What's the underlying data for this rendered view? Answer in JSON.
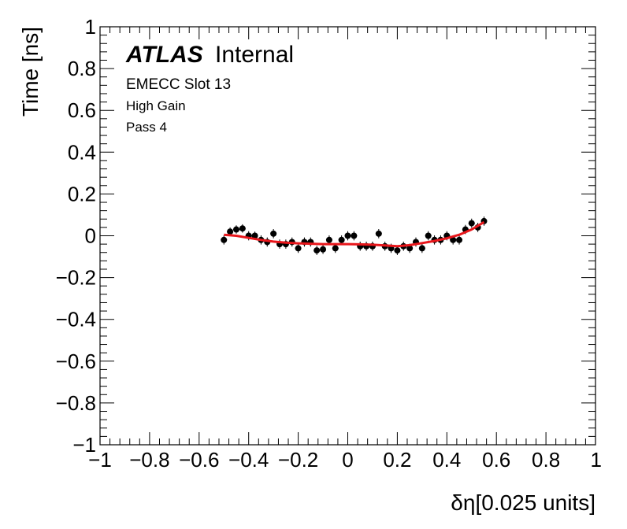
{
  "chart_data": {
    "type": "scatter",
    "xlabel": "δη[0.025 units]",
    "ylabel": "Time [ns]",
    "xlim": [
      -1,
      1
    ],
    "ylim": [
      -1,
      1
    ],
    "x_ticks": [
      -1,
      -0.8,
      -0.6,
      -0.4,
      -0.2,
      0,
      0.2,
      0.4,
      0.6,
      0.8,
      1
    ],
    "y_ticks": [
      -1,
      -0.8,
      -0.6,
      -0.4,
      -0.2,
      0,
      0.2,
      0.4,
      0.6,
      0.8,
      1
    ],
    "x_tick_labels": [
      "−1",
      "−0.8",
      "−0.6",
      "−0.4",
      "−0.2",
      "0",
      "0.2",
      "0.4",
      "0.6",
      "0.8",
      "1"
    ],
    "y_tick_labels": [
      "−1",
      "−0.8",
      "−0.6",
      "−0.4",
      "−0.2",
      "0",
      "0.2",
      "0.4",
      "0.6",
      "0.8",
      "1"
    ],
    "grid": false,
    "annotations": {
      "experiment": "ATLAS",
      "status": "Internal",
      "line1": "EMECC Slot 13",
      "line2": "High Gain",
      "line3": "Pass 4"
    },
    "colors": {
      "points": "#000000",
      "fit": "#e8161b"
    },
    "series": [
      {
        "type": "scatter",
        "x": [
          -0.5,
          -0.475,
          -0.45,
          -0.425,
          -0.4,
          -0.375,
          -0.35,
          -0.325,
          -0.3,
          -0.275,
          -0.25,
          -0.225,
          -0.2,
          -0.175,
          -0.15,
          -0.125,
          -0.1,
          -0.075,
          -0.05,
          -0.025,
          0,
          0.025,
          0.05,
          0.075,
          0.1,
          0.125,
          0.15,
          0.175,
          0.2,
          0.225,
          0.25,
          0.275,
          0.3,
          0.325,
          0.35,
          0.375,
          0.4,
          0.425,
          0.45,
          0.475,
          0.5,
          0.525,
          0.55
        ],
        "y": [
          -0.02,
          0.02,
          0.03,
          0.035,
          0.0,
          0.0,
          -0.02,
          -0.03,
          0.01,
          -0.04,
          -0.04,
          -0.03,
          -0.06,
          -0.03,
          -0.03,
          -0.07,
          -0.065,
          -0.02,
          -0.06,
          -0.02,
          0.0,
          0.0,
          -0.05,
          -0.05,
          -0.05,
          0.01,
          -0.05,
          -0.06,
          -0.07,
          -0.05,
          -0.06,
          -0.03,
          -0.06,
          0.0,
          -0.02,
          -0.02,
          0.0,
          -0.02,
          -0.02,
          0.03,
          0.06,
          0.04,
          0.07
        ],
        "yerr": [
          0.022,
          0.02,
          0.02,
          0.02,
          0.022,
          0.02,
          0.022,
          0.022,
          0.022,
          0.022,
          0.022,
          0.022,
          0.022,
          0.022,
          0.022,
          0.022,
          0.022,
          0.022,
          0.022,
          0.022,
          0.022,
          0.022,
          0.022,
          0.022,
          0.022,
          0.022,
          0.022,
          0.022,
          0.022,
          0.022,
          0.022,
          0.022,
          0.022,
          0.022,
          0.022,
          0.022,
          0.022,
          0.022,
          0.022,
          0.022,
          0.022,
          0.022,
          0.022
        ]
      },
      {
        "type": "line",
        "x": [
          -0.5,
          -0.45,
          -0.4,
          -0.35,
          -0.3,
          -0.25,
          -0.2,
          -0.15,
          -0.1,
          -0.05,
          0,
          0.05,
          0.1,
          0.15,
          0.2,
          0.25,
          0.3,
          0.35,
          0.4,
          0.45,
          0.5,
          0.55
        ],
        "y": [
          0.005,
          0.0,
          -0.01,
          -0.02,
          -0.028,
          -0.033,
          -0.036,
          -0.038,
          -0.04,
          -0.04,
          -0.04,
          -0.041,
          -0.043,
          -0.046,
          -0.05,
          -0.045,
          -0.035,
          -0.025,
          -0.012,
          0.005,
          0.03,
          0.065
        ]
      }
    ]
  }
}
